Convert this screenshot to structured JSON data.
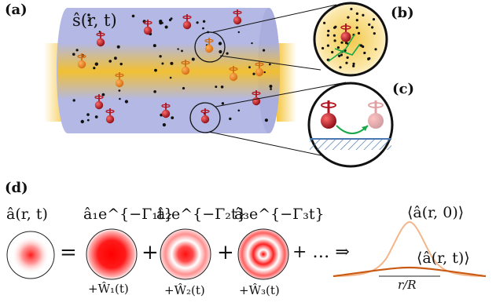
{
  "panels": {
    "a": "(a)",
    "b": "(b)",
    "c": "(c)",
    "d": "(d)"
  },
  "labels": {
    "spin_field": "ŝ(r, t)",
    "a_rt": "â(r, t)",
    "term1": "â₁e^{−Γ₁t}",
    "term2": "â₂e^{−Γ₂t}",
    "term3": "â₃e^{−Γ₃t}",
    "w1": "+Ŵ₁(t)",
    "w2": "+Ŵ₂(t)",
    "w3": "+Ŵ₃(t)",
    "equals": "=",
    "plus1": "+",
    "plus2": "+",
    "plus_dots": "+ … ⇒",
    "profile_initial": "⟨â(r, 0)⟩",
    "profile_late": "⟨â(r, t)⟩",
    "axis": "r/R"
  },
  "colors": {
    "cylinder": "#b3b8e4",
    "beam": "#f5c02a",
    "spin": "#b3131e",
    "profile_initial": "#f4b58a",
    "profile_late": "#c85a14",
    "mode": "#ff1a1a",
    "arrow_green": "#1aa84a"
  }
}
